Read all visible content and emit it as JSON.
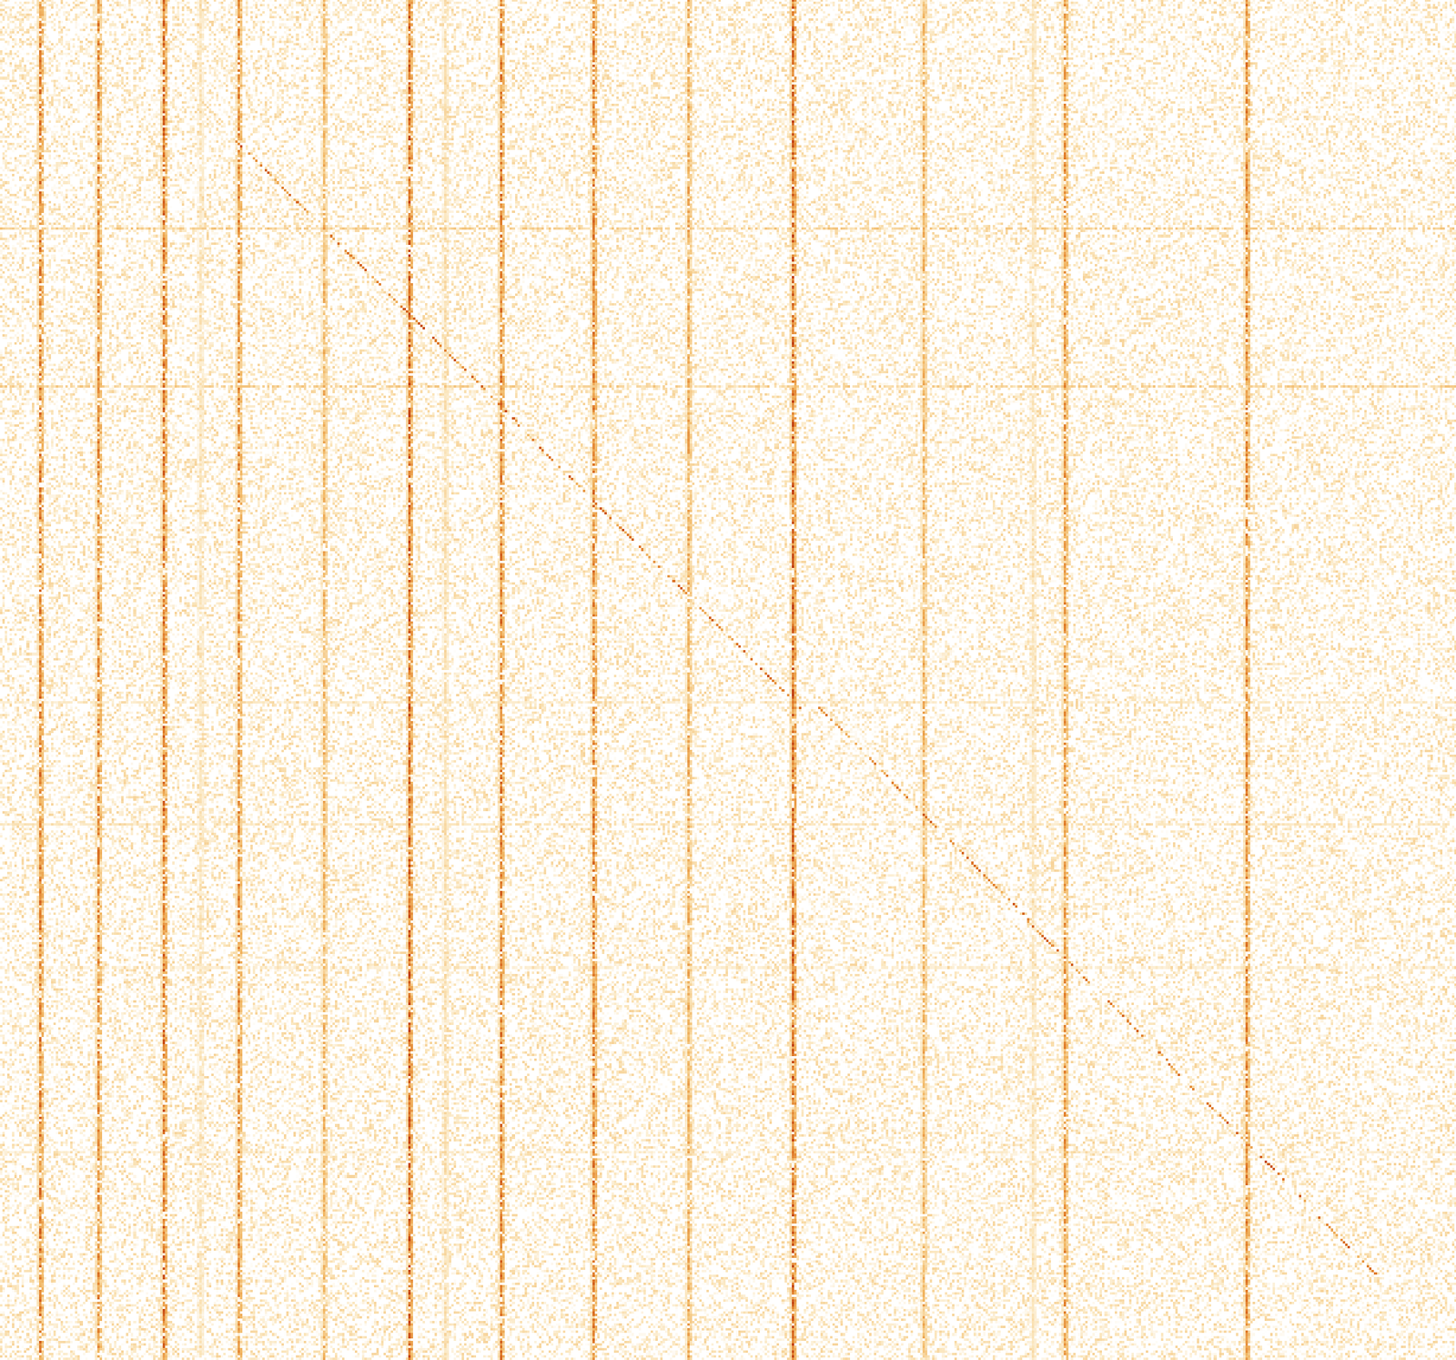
{
  "chart_data": {
    "type": "heatmap",
    "tick_labels": false,
    "n_cols": 600,
    "n_rows": 560,
    "colors": [
      "#ffffff",
      "#fbe6bd",
      "#f2b865",
      "#e07b2a",
      "#b8300f"
    ],
    "vertical_stripes": [
      {
        "col": 16,
        "strength": 0.85
      },
      {
        "col": 40,
        "strength": 0.8
      },
      {
        "col": 67,
        "strength": 0.9
      },
      {
        "col": 82,
        "strength": 0.3
      },
      {
        "col": 98,
        "strength": 0.8
      },
      {
        "col": 133,
        "strength": 0.6
      },
      {
        "col": 168,
        "strength": 0.95
      },
      {
        "col": 183,
        "strength": 0.35
      },
      {
        "col": 206,
        "strength": 0.85
      },
      {
        "col": 244,
        "strength": 0.85
      },
      {
        "col": 283,
        "strength": 0.65
      },
      {
        "col": 326,
        "strength": 0.95
      },
      {
        "col": 380,
        "strength": 0.6
      },
      {
        "col": 425,
        "strength": 0.3
      },
      {
        "col": 438,
        "strength": 0.75
      },
      {
        "col": 513,
        "strength": 0.8
      }
    ],
    "horizontal_stripes": [
      {
        "row": 94,
        "strength": 0.45
      },
      {
        "row": 159,
        "strength": 0.45
      },
      {
        "row": 289,
        "strength": 0.25
      },
      {
        "row": 339,
        "strength": 0.3
      },
      {
        "row": 398,
        "strength": 0.2
      },
      {
        "row": 474,
        "strength": 0.2
      }
    ],
    "diagonals": [
      [
        96,
        57,
        329,
        291
      ],
      [
        337,
        291,
        566,
        524
      ]
    ]
  }
}
